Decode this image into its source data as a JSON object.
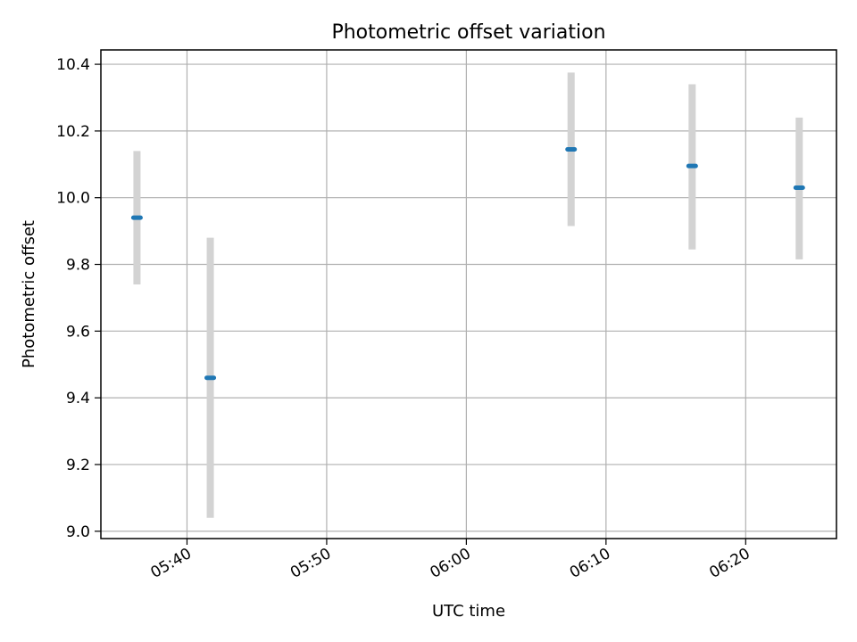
{
  "chart_data": {
    "type": "scatter",
    "title": "Photometric offset variation",
    "xlabel": "UTC time",
    "ylabel": "Photometric offset",
    "x_axis_kind": "time",
    "xlim": [
      "05:33:50",
      "06:26:30"
    ],
    "ylim": [
      8.978,
      10.443
    ],
    "grid": true,
    "x_ticks": [
      "05:40",
      "05:50",
      "06:00",
      "06:10",
      "06:20"
    ],
    "y_ticks": [
      "9.0",
      "9.2",
      "9.4",
      "9.6",
      "9.8",
      "10.0",
      "10.2",
      "10.4"
    ],
    "points": [
      {
        "time": "05:36:25",
        "value": 9.94,
        "err_low": 9.74,
        "err_high": 10.14
      },
      {
        "time": "05:41:40",
        "value": 9.46,
        "err_low": 9.04,
        "err_high": 9.88
      },
      {
        "time": "06:07:30",
        "value": 10.145,
        "err_low": 9.915,
        "err_high": 10.375
      },
      {
        "time": "06:16:10",
        "value": 10.095,
        "err_low": 9.845,
        "err_high": 10.34
      },
      {
        "time": "06:23:50",
        "value": 10.03,
        "err_low": 9.815,
        "err_high": 10.24
      }
    ],
    "colors": {
      "marker": "#1f77b4",
      "errorbar": "#d3d3d3",
      "grid": "#b0b0b0",
      "axes": "#000000"
    }
  }
}
